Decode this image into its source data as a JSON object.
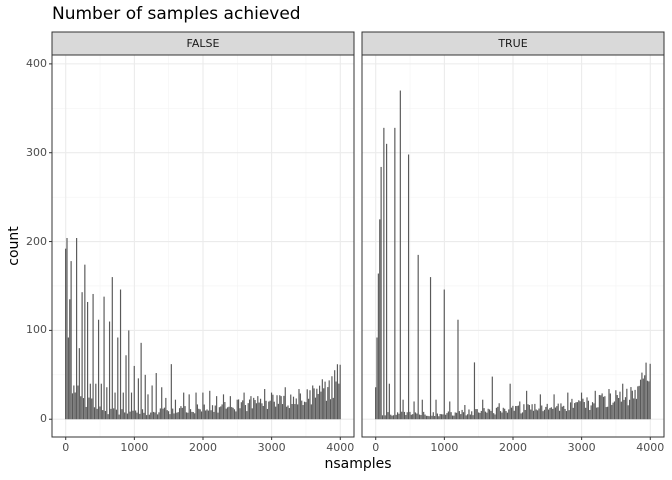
{
  "chart_data": {
    "type": "bar",
    "subtype": "histogram",
    "title": "Number of samples achieved",
    "xlabel": "nsamples",
    "ylabel": "count",
    "xlim": [
      -200,
      4200
    ],
    "ylim": [
      -20,
      410
    ],
    "xticks": [
      0,
      1000,
      2000,
      3000,
      4000
    ],
    "yticks": [
      0,
      100,
      200,
      300,
      400
    ],
    "grid": true,
    "bar_color": "#595959",
    "panel_border_color": "#333333",
    "strip_fill": "#d9d9d9",
    "grid_color": "#ebebeb",
    "facets": [
      {
        "label": "FALSE",
        "spikes": [
          {
            "x": 0,
            "y": 192
          },
          {
            "x": 20,
            "y": 204
          },
          {
            "x": 40,
            "y": 92
          },
          {
            "x": 60,
            "y": 135
          },
          {
            "x": 80,
            "y": 178
          },
          {
            "x": 120,
            "y": 38
          },
          {
            "x": 160,
            "y": 204
          },
          {
            "x": 200,
            "y": 80
          },
          {
            "x": 240,
            "y": 143
          },
          {
            "x": 280,
            "y": 174
          },
          {
            "x": 320,
            "y": 132
          },
          {
            "x": 360,
            "y": 40
          },
          {
            "x": 400,
            "y": 141
          },
          {
            "x": 440,
            "y": 40
          },
          {
            "x": 480,
            "y": 112
          },
          {
            "x": 520,
            "y": 40
          },
          {
            "x": 560,
            "y": 138
          },
          {
            "x": 600,
            "y": 36
          },
          {
            "x": 640,
            "y": 110
          },
          {
            "x": 680,
            "y": 160
          },
          {
            "x": 720,
            "y": 30
          },
          {
            "x": 760,
            "y": 92
          },
          {
            "x": 800,
            "y": 146
          },
          {
            "x": 840,
            "y": 30
          },
          {
            "x": 880,
            "y": 72
          },
          {
            "x": 920,
            "y": 100
          },
          {
            "x": 960,
            "y": 30
          },
          {
            "x": 1000,
            "y": 60
          },
          {
            "x": 1060,
            "y": 46
          },
          {
            "x": 1100,
            "y": 86
          },
          {
            "x": 1160,
            "y": 50
          },
          {
            "x": 1200,
            "y": 28
          },
          {
            "x": 1260,
            "y": 38
          },
          {
            "x": 1320,
            "y": 52
          },
          {
            "x": 1400,
            "y": 36
          },
          {
            "x": 1460,
            "y": 24
          },
          {
            "x": 1540,
            "y": 62
          },
          {
            "x": 1600,
            "y": 22
          },
          {
            "x": 1720,
            "y": 30
          },
          {
            "x": 1800,
            "y": 28
          },
          {
            "x": 1900,
            "y": 30
          },
          {
            "x": 2000,
            "y": 30
          },
          {
            "x": 2100,
            "y": 32
          },
          {
            "x": 2200,
            "y": 26
          },
          {
            "x": 2300,
            "y": 28
          },
          {
            "x": 2400,
            "y": 26
          },
          {
            "x": 2500,
            "y": 22
          },
          {
            "x": 2600,
            "y": 30
          },
          {
            "x": 2700,
            "y": 26
          },
          {
            "x": 2800,
            "y": 26
          },
          {
            "x": 2900,
            "y": 34
          },
          {
            "x": 3000,
            "y": 30
          },
          {
            "x": 3200,
            "y": 36
          },
          {
            "x": 3400,
            "y": 34
          },
          {
            "x": 3600,
            "y": 38
          }
        ],
        "baseline": [
          {
            "x": 0,
            "y": 50
          },
          {
            "x": 200,
            "y": 24
          },
          {
            "x": 400,
            "y": 16
          },
          {
            "x": 600,
            "y": 10
          },
          {
            "x": 800,
            "y": 8
          },
          {
            "x": 1000,
            "y": 8
          },
          {
            "x": 1200,
            "y": 8
          },
          {
            "x": 1400,
            "y": 9
          },
          {
            "x": 1600,
            "y": 10
          },
          {
            "x": 1800,
            "y": 11
          },
          {
            "x": 2000,
            "y": 12
          },
          {
            "x": 2200,
            "y": 13
          },
          {
            "x": 2400,
            "y": 15
          },
          {
            "x": 2600,
            "y": 16
          },
          {
            "x": 2800,
            "y": 17
          },
          {
            "x": 3000,
            "y": 19
          },
          {
            "x": 3200,
            "y": 21
          },
          {
            "x": 3400,
            "y": 24
          },
          {
            "x": 3600,
            "y": 28
          },
          {
            "x": 3800,
            "y": 34
          },
          {
            "x": 3900,
            "y": 38
          },
          {
            "x": 4000,
            "y": 48
          }
        ]
      },
      {
        "label": "TRUE",
        "spikes": [
          {
            "x": 0,
            "y": 36
          },
          {
            "x": 20,
            "y": 92
          },
          {
            "x": 40,
            "y": 164
          },
          {
            "x": 60,
            "y": 225
          },
          {
            "x": 80,
            "y": 284
          },
          {
            "x": 120,
            "y": 328
          },
          {
            "x": 160,
            "y": 310
          },
          {
            "x": 200,
            "y": 40
          },
          {
            "x": 280,
            "y": 328
          },
          {
            "x": 360,
            "y": 370
          },
          {
            "x": 400,
            "y": 22
          },
          {
            "x": 480,
            "y": 298
          },
          {
            "x": 560,
            "y": 20
          },
          {
            "x": 620,
            "y": 185
          },
          {
            "x": 680,
            "y": 22
          },
          {
            "x": 800,
            "y": 160
          },
          {
            "x": 880,
            "y": 22
          },
          {
            "x": 1000,
            "y": 146
          },
          {
            "x": 1080,
            "y": 20
          },
          {
            "x": 1200,
            "y": 112
          },
          {
            "x": 1300,
            "y": 16
          },
          {
            "x": 1440,
            "y": 64
          },
          {
            "x": 1560,
            "y": 22
          },
          {
            "x": 1700,
            "y": 48
          },
          {
            "x": 1800,
            "y": 18
          },
          {
            "x": 1960,
            "y": 40
          },
          {
            "x": 2100,
            "y": 20
          },
          {
            "x": 2200,
            "y": 32
          },
          {
            "x": 2400,
            "y": 28
          },
          {
            "x": 2600,
            "y": 28
          },
          {
            "x": 2800,
            "y": 30
          },
          {
            "x": 3000,
            "y": 30
          },
          {
            "x": 3200,
            "y": 32
          },
          {
            "x": 3400,
            "y": 34
          },
          {
            "x": 3600,
            "y": 40
          }
        ],
        "baseline": [
          {
            "x": 0,
            "y": 5
          },
          {
            "x": 200,
            "y": 6
          },
          {
            "x": 400,
            "y": 6
          },
          {
            "x": 600,
            "y": 6
          },
          {
            "x": 800,
            "y": 6
          },
          {
            "x": 1000,
            "y": 6
          },
          {
            "x": 1200,
            "y": 7
          },
          {
            "x": 1400,
            "y": 8
          },
          {
            "x": 1600,
            "y": 9
          },
          {
            "x": 1800,
            "y": 10
          },
          {
            "x": 2000,
            "y": 11
          },
          {
            "x": 2200,
            "y": 12
          },
          {
            "x": 2400,
            "y": 13
          },
          {
            "x": 2600,
            "y": 14
          },
          {
            "x": 2800,
            "y": 16
          },
          {
            "x": 3000,
            "y": 17
          },
          {
            "x": 3200,
            "y": 19
          },
          {
            "x": 3400,
            "y": 22
          },
          {
            "x": 3600,
            "y": 25
          },
          {
            "x": 3700,
            "y": 28
          },
          {
            "x": 3800,
            "y": 32
          },
          {
            "x": 3900,
            "y": 40
          },
          {
            "x": 3950,
            "y": 50
          },
          {
            "x": 3980,
            "y": 70
          },
          {
            "x": 4000,
            "y": 95
          }
        ]
      }
    ]
  }
}
